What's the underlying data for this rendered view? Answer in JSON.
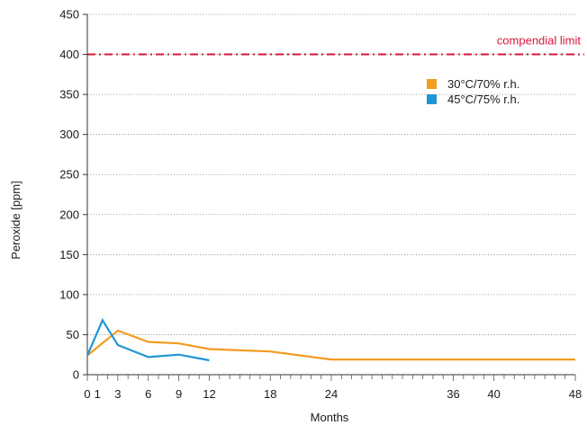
{
  "chart_data": {
    "type": "line",
    "xlabel": "Months",
    "ylabel": "Peroxide [ppm]",
    "xlim": [
      0,
      48
    ],
    "ylim": [
      0,
      450
    ],
    "x_ticks": [
      0,
      1,
      3,
      6,
      9,
      12,
      18,
      24,
      36,
      40,
      48
    ],
    "x_minor_ticks": [
      0,
      1,
      2,
      3,
      4,
      5,
      6,
      7,
      8,
      9,
      10,
      11,
      12,
      13,
      14,
      15,
      16,
      17,
      18,
      19,
      20,
      21,
      22,
      23,
      24,
      25,
      26,
      27,
      28,
      29,
      30,
      31,
      32,
      33,
      34,
      35,
      36,
      37,
      38,
      39,
      40,
      41,
      42,
      43,
      44,
      45,
      46,
      47,
      48
    ],
    "y_ticks": [
      0,
      50,
      100,
      150,
      200,
      250,
      300,
      350,
      400,
      450
    ],
    "grid": "horizontal dotted",
    "legend_position": "top-right",
    "reference_line": {
      "label": "compendial limit",
      "value": 400,
      "color": "#d4163c"
    },
    "series": [
      {
        "name": "30°C/70% r.h.",
        "color": "#f39c1f",
        "x": [
          0,
          3,
          6,
          9,
          12,
          18,
          24,
          48
        ],
        "values": [
          24,
          55,
          41,
          39,
          32,
          29,
          19,
          19
        ]
      },
      {
        "name": "45°C/75% r.h.",
        "color": "#1f96d4",
        "x": [
          0,
          1.5,
          3,
          6,
          9,
          12
        ],
        "values": [
          24,
          68,
          37,
          22,
          25,
          18
        ]
      }
    ]
  }
}
